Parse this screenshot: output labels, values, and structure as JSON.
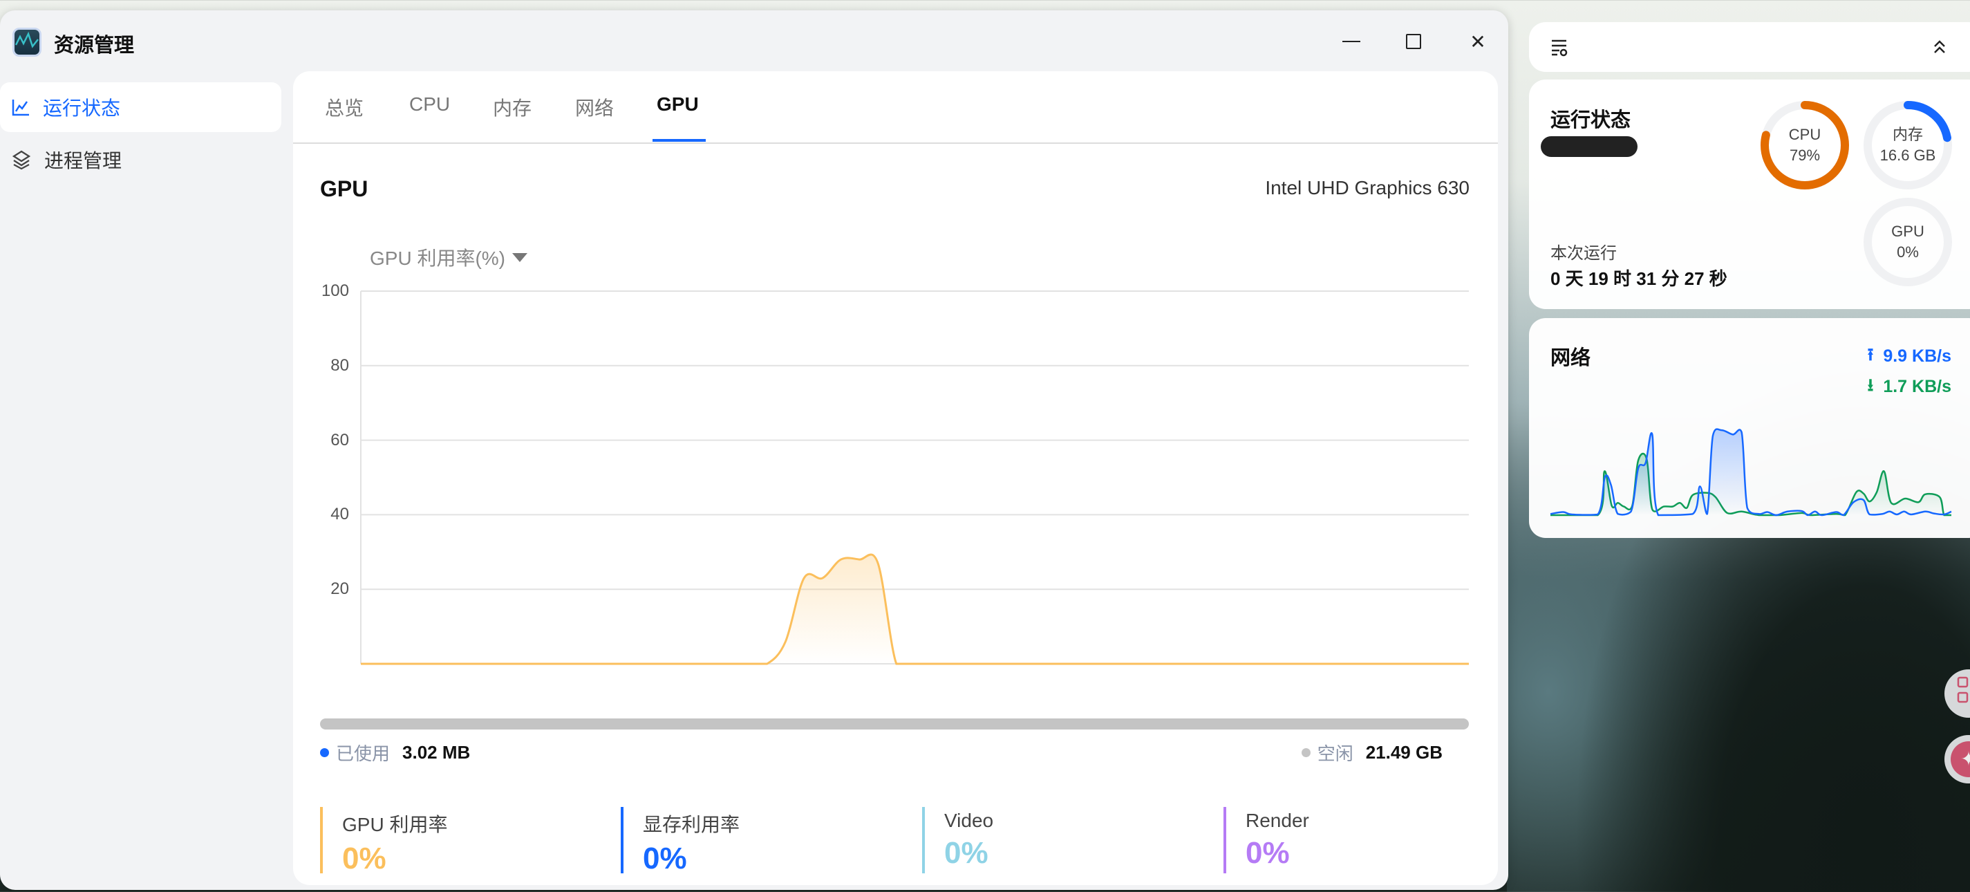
{
  "window": {
    "title": "资源管理",
    "minimize_icon": "minimize-icon",
    "maximize_icon": "maximize-icon",
    "close_icon": "close-icon"
  },
  "sidebar": {
    "items": [
      {
        "label": "运行状态",
        "icon": "line-chart-icon",
        "active": true
      },
      {
        "label": "进程管理",
        "icon": "layers-icon",
        "active": false
      }
    ]
  },
  "tabs": [
    {
      "label": "总览"
    },
    {
      "label": "CPU"
    },
    {
      "label": "内存"
    },
    {
      "label": "网络"
    },
    {
      "label": "GPU",
      "active": true
    }
  ],
  "gpu": {
    "heading": "GPU",
    "device": "Intel UHD Graphics 630",
    "metric_select": "GPU 利用率(%)",
    "memory": {
      "used_label": "已使用",
      "used_value": "3.02 MB",
      "free_label": "空闲",
      "free_value": "21.49 GB",
      "used_color": "#1668ff",
      "free_color": "#c4c4c4"
    },
    "stats": [
      {
        "label": "GPU 利用率",
        "value": "0%",
        "color": "#fbbf5c"
      },
      {
        "label": "显存利用率",
        "value": "0%",
        "color": "#1668ff"
      },
      {
        "label": "Video",
        "value": "0%",
        "color": "#8fd3e6"
      },
      {
        "label": "Render",
        "value": "0%",
        "color": "#b57bf5"
      }
    ]
  },
  "chart_data": {
    "type": "area",
    "ylim": [
      0,
      100
    ],
    "yticks": [
      "100",
      "80",
      "60",
      "40",
      "20"
    ],
    "grid": true,
    "color": "#fbbf5c",
    "x": [
      0,
      1,
      2,
      3,
      4,
      5,
      6,
      7,
      8,
      9,
      10,
      11,
      12,
      13,
      14,
      15,
      16,
      17,
      18,
      19,
      20,
      21,
      22,
      23,
      24,
      25,
      26,
      27,
      28,
      29,
      30,
      31,
      32,
      33,
      34,
      35,
      36,
      37,
      38,
      39,
      40,
      41,
      42,
      43,
      44,
      45,
      46,
      47,
      48,
      49,
      50,
      51,
      52,
      53,
      54,
      55,
      56,
      57,
      58,
      59,
      60
    ],
    "values": [
      0,
      0,
      0,
      0,
      0,
      0,
      0,
      0,
      0,
      0,
      0,
      0,
      0,
      0,
      0,
      0,
      0,
      0,
      0,
      0,
      0,
      0,
      0,
      6,
      23,
      23,
      28,
      28,
      27,
      0,
      0,
      0,
      0,
      0,
      0,
      0,
      0,
      0,
      0,
      0,
      0,
      0,
      0,
      0,
      0,
      0,
      0,
      0,
      0,
      0,
      0,
      0,
      0,
      0,
      0,
      0,
      0,
      0,
      0,
      0,
      0
    ]
  },
  "widget": {
    "filter_icon": "filter-settings-icon",
    "collapse_icon": "double-chevron-up-icon",
    "status": {
      "title": "运行状态",
      "uptime_label": "本次运行",
      "uptime_value": "0 天 19 时 31 分 27 秒",
      "rings": [
        {
          "label": "CPU",
          "value": "79%",
          "fraction": 0.79,
          "color": "#e36c00"
        },
        {
          "label": "内存",
          "value": "16.6 GB",
          "fraction": 0.22,
          "color": "#1668ff"
        },
        {
          "label": "GPU",
          "value": "0%",
          "fraction": 0,
          "color": "#1668ff"
        }
      ]
    },
    "network": {
      "title": "网络",
      "upload": "9.9 KB/s",
      "download": "1.7 KB/s",
      "upload_color": "#1668ff",
      "download_color": "#0f9d58",
      "upload_series": [
        [
          0,
          1.7
        ],
        [
          3.2,
          4.3
        ],
        [
          5.4,
          1
        ],
        [
          11.8,
          1
        ],
        [
          13.6,
          53
        ],
        [
          15.1,
          42
        ],
        [
          16.8,
          1.7
        ],
        [
          20.1,
          5
        ],
        [
          21.9,
          65
        ],
        [
          23.7,
          72
        ],
        [
          25.4,
          112
        ],
        [
          26.9,
          0
        ],
        [
          35.5,
          1.7
        ],
        [
          37.3,
          40
        ],
        [
          39.1,
          1.7
        ],
        [
          40.5,
          110
        ],
        [
          42.7,
          118
        ],
        [
          45.5,
          112
        ],
        [
          47.7,
          115
        ],
        [
          49.1,
          10
        ],
        [
          52,
          1.7
        ],
        [
          54.1,
          4.3
        ],
        [
          56.3,
          0
        ],
        [
          59.1,
          5
        ],
        [
          62.7,
          5.7
        ],
        [
          64.2,
          0
        ],
        [
          66,
          5
        ],
        [
          67.7,
          0
        ],
        [
          71.3,
          4.3
        ],
        [
          73.1,
          0
        ],
        [
          75.6,
          18
        ],
        [
          78.1,
          21
        ],
        [
          79.6,
          1
        ],
        [
          82.8,
          1.7
        ],
        [
          84.6,
          5
        ],
        [
          86.4,
          1
        ],
        [
          88.2,
          5
        ],
        [
          90,
          1
        ],
        [
          93.5,
          5
        ],
        [
          95.7,
          2.3
        ],
        [
          98.2,
          1
        ],
        [
          100,
          5
        ]
      ],
      "download_series": [
        [
          0,
          0
        ],
        [
          11.8,
          0
        ],
        [
          13.5,
          61
        ],
        [
          15.3,
          13
        ],
        [
          16.8,
          17
        ],
        [
          18.3,
          12
        ],
        [
          20.4,
          13
        ],
        [
          21.9,
          76
        ],
        [
          24,
          78
        ],
        [
          25.4,
          8
        ],
        [
          28.3,
          12
        ],
        [
          30.5,
          12
        ],
        [
          32.3,
          17
        ],
        [
          34,
          10
        ],
        [
          35.5,
          28
        ],
        [
          39.1,
          31
        ],
        [
          41.2,
          25
        ],
        [
          44.1,
          3
        ],
        [
          47.7,
          5
        ],
        [
          52,
          0
        ],
        [
          57,
          0
        ],
        [
          62.7,
          3
        ],
        [
          64.9,
          0
        ],
        [
          71.3,
          1.7
        ],
        [
          73.5,
          0
        ],
        [
          76.3,
          32
        ],
        [
          78.1,
          30
        ],
        [
          79.6,
          19
        ],
        [
          81.4,
          32
        ],
        [
          83.2,
          61
        ],
        [
          85,
          17
        ],
        [
          88.5,
          23
        ],
        [
          91.8,
          18
        ],
        [
          93.5,
          29
        ],
        [
          97.1,
          25
        ],
        [
          98.2,
          0
        ],
        [
          100,
          0
        ]
      ]
    }
  },
  "floating": [
    {
      "icon": "grid-icon"
    },
    {
      "icon": "sparkle-icon"
    }
  ]
}
